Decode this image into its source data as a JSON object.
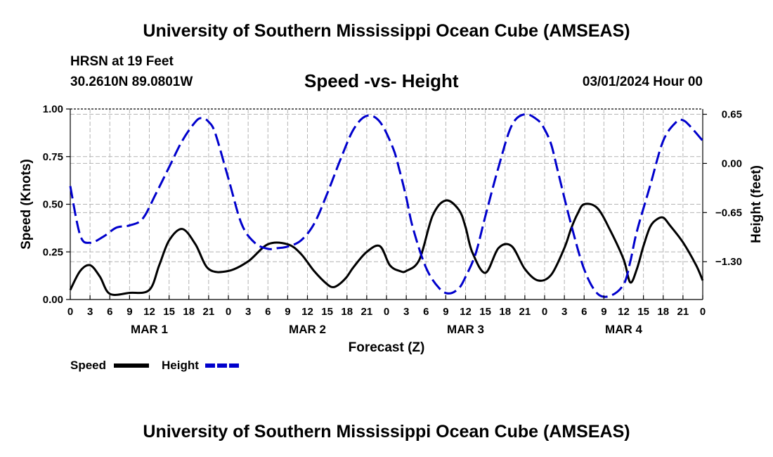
{
  "header": {
    "title": "University of Southern Mississippi Ocean Cube (AMSEAS)",
    "station": "HRSN at 19 Feet",
    "coords": "30.2610N  89.0801W",
    "subtitle": "Speed -vs- Height",
    "runtime": "03/01/2024 Hour 00"
  },
  "footer": {
    "title": "University of Southern Mississippi Ocean Cube (AMSEAS)"
  },
  "chart_data": {
    "type": "line",
    "xlabel": "Forecast (Z)",
    "ylabel_left": "Speed (Knots)",
    "ylabel_right": "Height (feet)",
    "xlim": [
      0,
      96
    ],
    "ylim_left": [
      0,
      1.0
    ],
    "ylim_right": [
      -1.8,
      0.72
    ],
    "x_ticks": [
      0,
      3,
      6,
      9,
      12,
      15,
      18,
      21,
      24,
      27,
      30,
      33,
      36,
      39,
      42,
      45,
      48,
      51,
      54,
      57,
      60,
      63,
      66,
      69,
      72,
      75,
      78,
      81,
      84,
      87,
      90,
      93,
      96
    ],
    "x_tick_labels": [
      "0",
      "3",
      "6",
      "9",
      "12",
      "15",
      "18",
      "21",
      "0",
      "3",
      "6",
      "9",
      "12",
      "15",
      "18",
      "21",
      "0",
      "3",
      "6",
      "9",
      "12",
      "15",
      "18",
      "21",
      "0",
      "3",
      "6",
      "9",
      "12",
      "15",
      "18",
      "21",
      "0"
    ],
    "day_labels": [
      {
        "x": 12,
        "label": "MAR 1"
      },
      {
        "x": 36,
        "label": "MAR 2"
      },
      {
        "x": 60,
        "label": "MAR 3"
      },
      {
        "x": 84,
        "label": "MAR 4"
      }
    ],
    "left_ticks": [
      {
        "value": 0.0,
        "label": "0.00"
      },
      {
        "value": 0.25,
        "label": "0.25"
      },
      {
        "value": 0.5,
        "label": "0.50"
      },
      {
        "value": 0.75,
        "label": "0.75"
      },
      {
        "value": 1.0,
        "label": "1.00"
      }
    ],
    "right_ticks": [
      {
        "value": 0.65,
        "label": "0.65"
      },
      {
        "value": 0.0,
        "label": "0.00"
      },
      {
        "value": -0.65,
        "label": "−0.65"
      },
      {
        "value": -1.3,
        "label": "−1.30"
      }
    ],
    "series": [
      {
        "name": "Speed",
        "axis": "left",
        "color": "#000000",
        "dashed": false,
        "x": [
          0,
          1.5,
          3,
          4.5,
          6,
          9,
          12,
          13.5,
          15,
          17,
          19,
          21,
          24,
          27,
          30,
          33,
          35,
          37,
          39,
          40,
          41,
          42,
          43,
          45,
          47,
          48.5,
          50,
          51,
          53,
          55,
          57,
          59,
          60,
          61,
          63,
          65,
          67,
          69,
          71,
          73,
          75,
          76,
          77,
          78,
          80,
          82,
          84,
          85,
          86,
          87,
          88,
          89,
          90,
          91,
          93,
          95,
          96
        ],
        "values": [
          0.05,
          0.15,
          0.18,
          0.12,
          0.03,
          0.035,
          0.05,
          0.18,
          0.31,
          0.37,
          0.29,
          0.16,
          0.15,
          0.2,
          0.29,
          0.29,
          0.24,
          0.15,
          0.08,
          0.065,
          0.085,
          0.12,
          0.17,
          0.25,
          0.28,
          0.18,
          0.15,
          0.15,
          0.21,
          0.44,
          0.52,
          0.47,
          0.38,
          0.25,
          0.14,
          0.27,
          0.28,
          0.16,
          0.1,
          0.13,
          0.27,
          0.37,
          0.45,
          0.5,
          0.48,
          0.36,
          0.21,
          0.09,
          0.16,
          0.28,
          0.38,
          0.42,
          0.43,
          0.39,
          0.3,
          0.18,
          0.1
        ]
      },
      {
        "name": "Height",
        "axis": "right",
        "color": "#0000cc",
        "dashed": true,
        "x": [
          0,
          1.5,
          3,
          5,
          7,
          9,
          11,
          13,
          15,
          17,
          19,
          20,
          21,
          22,
          24,
          26,
          28,
          30,
          31.5,
          33,
          35,
          37,
          39,
          41,
          43,
          45,
          47,
          49,
          50,
          51,
          52,
          54,
          56,
          57.5,
          59,
          60,
          61.5,
          63,
          65,
          67,
          69,
          71,
          72,
          73,
          74,
          76,
          78,
          80,
          82,
          84,
          85,
          86,
          88,
          90,
          92,
          93,
          94,
          96
        ],
        "values": [
          -0.3,
          -0.95,
          -1.05,
          -0.97,
          -0.85,
          -0.82,
          -0.73,
          -0.4,
          -0.05,
          0.3,
          0.55,
          0.6,
          0.55,
          0.4,
          -0.2,
          -0.8,
          -1.05,
          -1.13,
          -1.12,
          -1.1,
          -1.02,
          -0.8,
          -0.4,
          0.05,
          0.45,
          0.63,
          0.55,
          0.2,
          -0.1,
          -0.45,
          -0.85,
          -1.38,
          -1.65,
          -1.72,
          -1.65,
          -1.5,
          -1.2,
          -0.7,
          -0.05,
          0.5,
          0.65,
          0.57,
          0.45,
          0.25,
          -0.1,
          -0.8,
          -1.4,
          -1.72,
          -1.75,
          -1.6,
          -1.3,
          -0.9,
          -0.3,
          0.3,
          0.55,
          0.57,
          0.5,
          0.3
        ]
      }
    ],
    "legend": [
      {
        "label": "Speed",
        "color": "#000000",
        "dashed": false
      },
      {
        "label": "Height",
        "color": "#0000cc",
        "dashed": true
      }
    ]
  }
}
